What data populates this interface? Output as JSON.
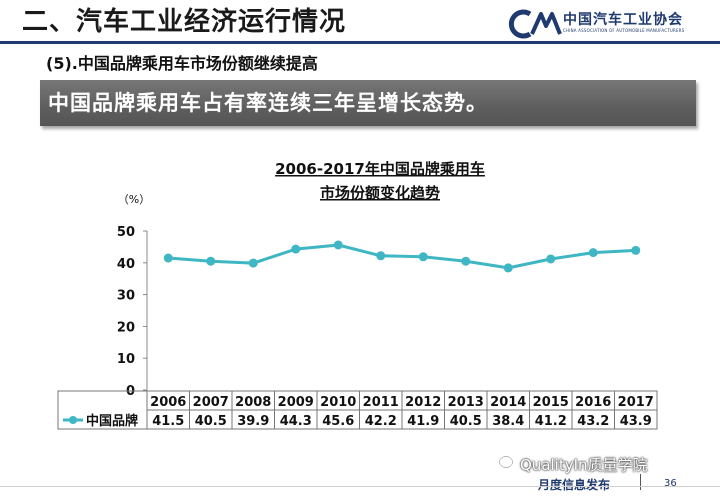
{
  "header": {
    "title": "二、汽车工业经济运行情况",
    "logo_text": "中国汽车工业协会",
    "logo_sub": "CHINA ASSOCIATION OF AUTOMOBILE MANUFACTURERS"
  },
  "section": {
    "subtitle": "(5).中国品牌乘用车市场份额继续提高",
    "banner": "中国品牌乘用车占有率连续三年呈增长态势。"
  },
  "chart_data": {
    "type": "line",
    "title_line1": "2006-2017年中国品牌乘用车",
    "title_line2": "市场份额变化趋势",
    "ylabel": "（%）",
    "ylim": [
      0,
      50
    ],
    "yticks": [
      0,
      10,
      20,
      30,
      40,
      50
    ],
    "categories": [
      "2006",
      "2007",
      "2008",
      "2009",
      "2010",
      "2011",
      "2012",
      "2013",
      "2014",
      "2015",
      "2016",
      "2017"
    ],
    "series": [
      {
        "name": "中国品牌",
        "values": [
          41.5,
          40.5,
          39.9,
          44.3,
          45.6,
          42.2,
          41.9,
          40.5,
          38.4,
          41.2,
          43.2,
          43.9
        ],
        "labels": [
          "41.5",
          "40.5",
          "39.9",
          "44.3",
          "45.6",
          "42.2",
          "41.9",
          "40.5",
          "38.4",
          "41.2",
          "43.2",
          "43.9"
        ],
        "color": "#3fb6c3"
      }
    ],
    "grid": false,
    "legend": "data-table-left"
  },
  "footer": {
    "label": "月度信息发布",
    "page": "36",
    "watermark": "QualityIn质量学院"
  },
  "colors": {
    "header_rule": "#1f3a6e",
    "line": "#3fb6c3",
    "banner": "#666666"
  }
}
